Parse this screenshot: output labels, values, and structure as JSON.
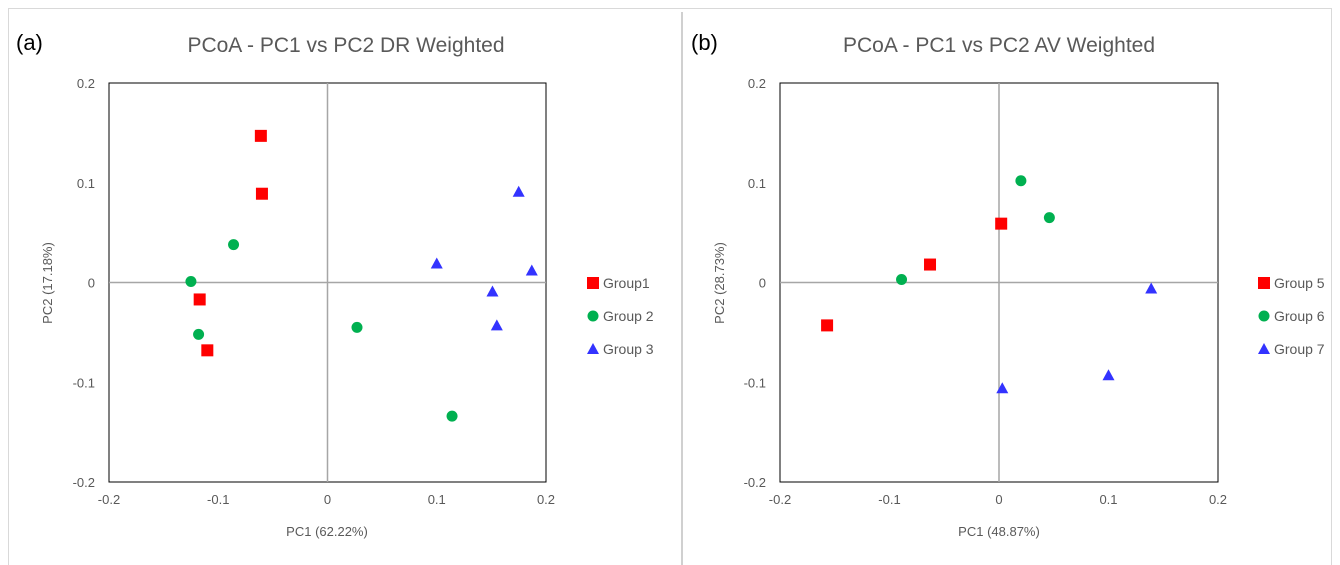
{
  "chart_data": [
    {
      "type": "scatter",
      "panel_label": "(a)",
      "title": "PCoA - PC1 vs PC2 DR Weighted",
      "xlabel": "PC1 (62.22%)",
      "ylabel": "PC2 (17.18%)",
      "xlim": [
        -0.2,
        0.2
      ],
      "ylim": [
        -0.2,
        0.2
      ],
      "xticks": [
        "-0.2",
        "-0.1",
        "0",
        "0.1",
        "0.2"
      ],
      "yticks": [
        "0.2",
        "0.1",
        "0",
        "-0.1",
        "-0.2"
      ],
      "grid": false,
      "legend_position": "right",
      "series": [
        {
          "name": "Group1",
          "marker": "square",
          "color": "#ff0000",
          "points": [
            [
              -0.061,
              0.147
            ],
            [
              -0.06,
              0.089
            ],
            [
              -0.117,
              -0.017
            ],
            [
              -0.11,
              -0.068
            ]
          ]
        },
        {
          "name": "Group 2",
          "marker": "circle",
          "color": "#00b050",
          "points": [
            [
              -0.086,
              0.038
            ],
            [
              -0.125,
              0.001
            ],
            [
              -0.118,
              -0.052
            ],
            [
              0.027,
              -0.045
            ],
            [
              0.114,
              -0.134
            ]
          ]
        },
        {
          "name": "Group 3",
          "marker": "triangle",
          "color": "#3333ff",
          "points": [
            [
              0.175,
              0.091
            ],
            [
              0.1,
              0.019
            ],
            [
              0.187,
              0.012
            ],
            [
              0.151,
              -0.009
            ],
            [
              0.155,
              -0.043
            ]
          ]
        }
      ]
    },
    {
      "type": "scatter",
      "panel_label": "(b)",
      "title": "PCoA - PC1 vs PC2 AV Weighted",
      "xlabel": "PC1 (48.87%)",
      "ylabel": "PC2 (28.73%)",
      "xlim": [
        -0.2,
        0.2
      ],
      "ylim": [
        -0.2,
        0.2
      ],
      "xticks": [
        "-0.2",
        "-0.1",
        "0",
        "0.1",
        "0.2"
      ],
      "yticks": [
        "0.2",
        "0.1",
        "0",
        "-0.1",
        "-0.2"
      ],
      "grid": false,
      "legend_position": "right",
      "series": [
        {
          "name": "Group 5",
          "marker": "square",
          "color": "#ff0000",
          "points": [
            [
              0.002,
              0.059
            ],
            [
              -0.063,
              0.018
            ],
            [
              -0.157,
              -0.043
            ]
          ]
        },
        {
          "name": "Group 6",
          "marker": "circle",
          "color": "#00b050",
          "points": [
            [
              0.02,
              0.102
            ],
            [
              0.046,
              0.065
            ],
            [
              -0.089,
              0.003
            ]
          ]
        },
        {
          "name": "Group 7",
          "marker": "triangle",
          "color": "#3333ff",
          "points": [
            [
              0.139,
              -0.006
            ],
            [
              0.003,
              -0.106
            ],
            [
              0.1,
              -0.093
            ]
          ]
        }
      ]
    }
  ]
}
